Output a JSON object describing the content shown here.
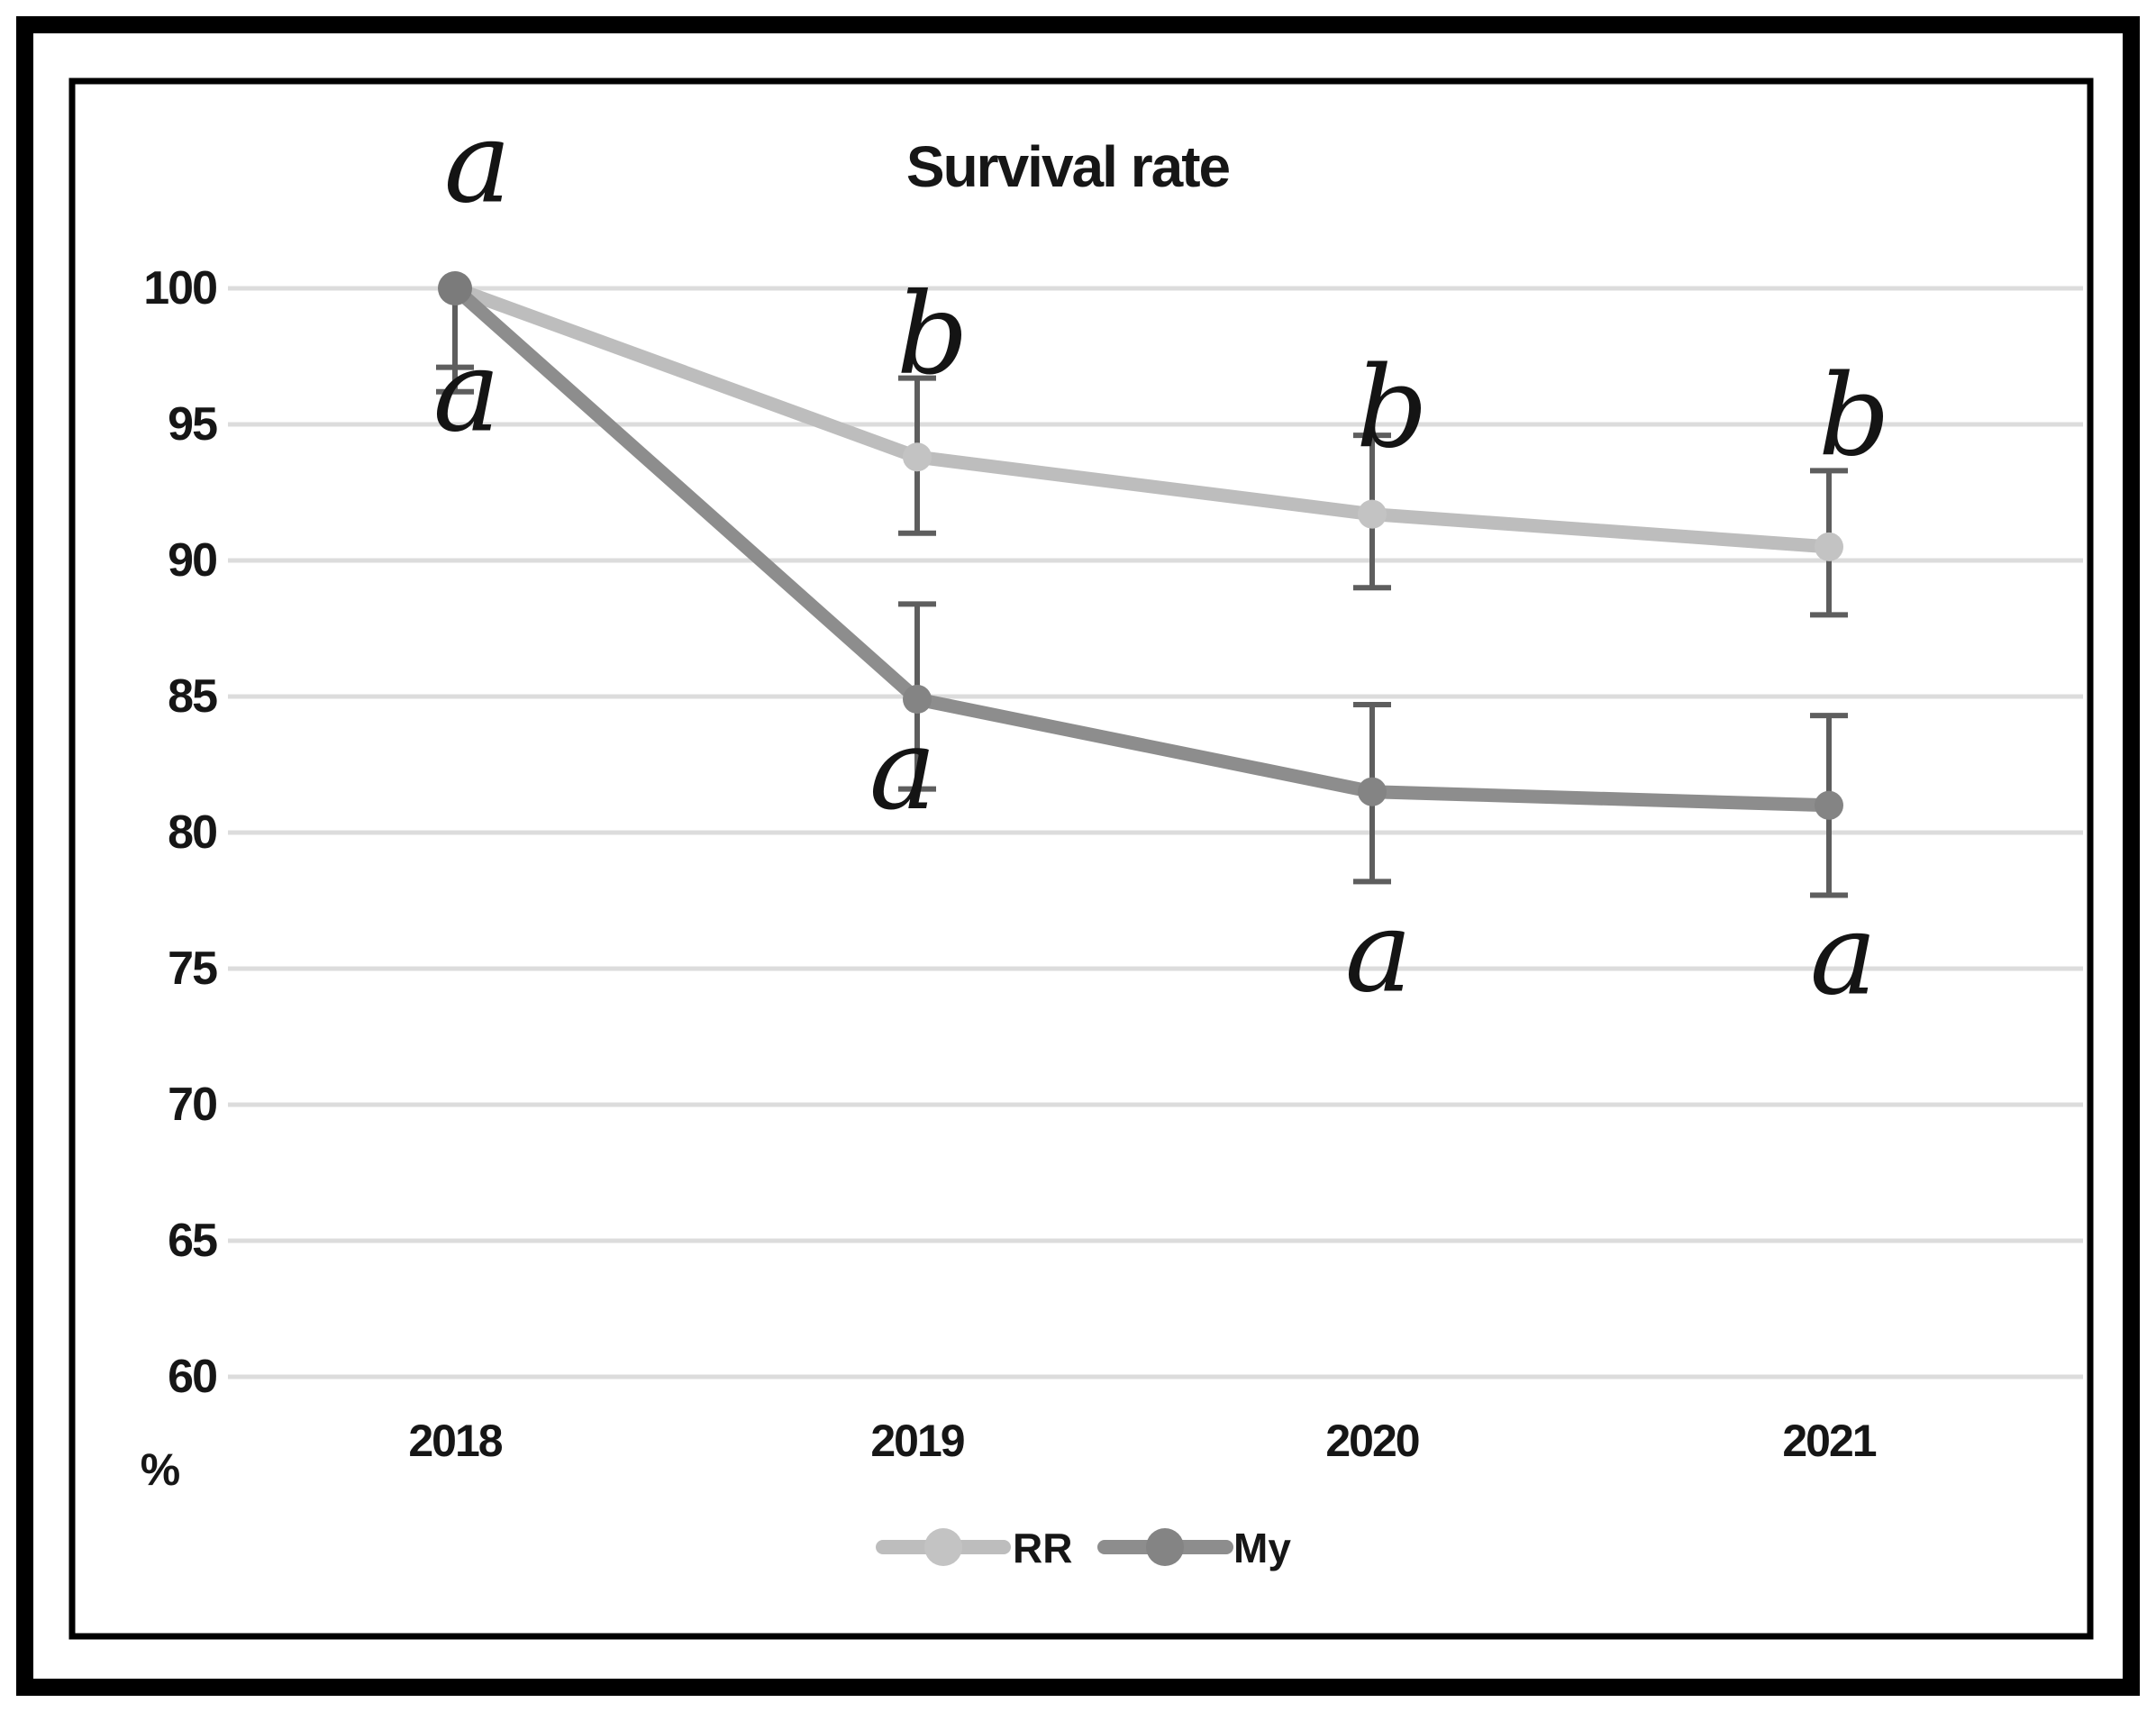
{
  "page": {
    "background": "#ffffff"
  },
  "chart_data": {
    "type": "line",
    "title": "Survival rate",
    "ylabel": "%",
    "categories": [
      "2018",
      "2019",
      "2020",
      "2021"
    ],
    "yticks": [
      100,
      95,
      90,
      85,
      80,
      75,
      70,
      65,
      60
    ],
    "ylim": [
      60,
      100
    ],
    "grid": true,
    "legend_position": "bottom-center",
    "series": [
      {
        "name": "RR",
        "color": "#bdbdbd",
        "marker_color": "#c3c3c3",
        "values": [
          100,
          93.8,
          91.7,
          90.5
        ],
        "err_high": [
          null,
          96.7,
          94.6,
          93.3
        ],
        "err_low": [
          97.1,
          91.0,
          89.0,
          88.0
        ]
      },
      {
        "name": "My",
        "color": "#8d8d8d",
        "marker_color": "#848484",
        "values": [
          100,
          84.9,
          81.5,
          81.0
        ],
        "err_high": [
          null,
          88.4,
          84.7,
          84.3
        ],
        "err_low": [
          96.2,
          81.6,
          78.2,
          77.7
        ]
      }
    ],
    "annotations": [
      {
        "text": "a",
        "cat": 0,
        "value": 104.2,
        "dx": 25
      },
      {
        "text": "a",
        "cat": 0,
        "value": 95.8,
        "dx": 13
      },
      {
        "text": "b",
        "cat": 1,
        "value": 98.5,
        "dx": 17
      },
      {
        "text": "a",
        "cat": 1,
        "value": 81.9,
        "dx": -16
      },
      {
        "text": "b",
        "cat": 2,
        "value": 95.8,
        "dx": 22
      },
      {
        "text": "a",
        "cat": 2,
        "value": 75.2,
        "dx": 7
      },
      {
        "text": "b",
        "cat": 3,
        "value": 95.5,
        "dx": 28
      },
      {
        "text": "a",
        "cat": 3,
        "value": 75.1,
        "dx": 16
      }
    ],
    "colors": {
      "error_bar": "#5e5e5e",
      "gridline": "#dcdcdc",
      "text": "#161616",
      "marker_2018": "#7b7b7b",
      "frame": "#000000"
    }
  }
}
